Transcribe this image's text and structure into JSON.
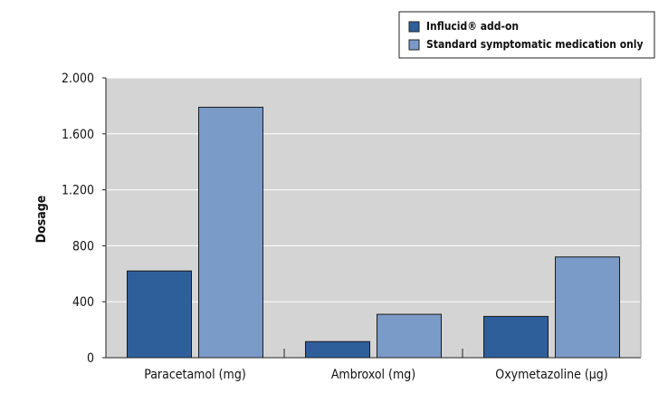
{
  "chart_data": {
    "type": "bar",
    "title": "",
    "xlabel": "",
    "ylabel": "Dosage",
    "ylim": [
      0,
      2000
    ],
    "yticks": [
      0,
      400,
      800,
      1200,
      1600,
      2000
    ],
    "ytick_labels": [
      "0",
      "400",
      "800",
      "1.200",
      "1.600",
      "2.000"
    ],
    "grid": true,
    "legend_position": "top-right",
    "categories": [
      "Paracetamol (mg)",
      "Ambroxol (mg)",
      "Oxymetazoline (µg)"
    ],
    "series": [
      {
        "name": "Influcid® add-on",
        "values": [
          620,
          115,
          295
        ],
        "color": "#2e5f9b"
      },
      {
        "name": "Standard symptomatic medication only",
        "values": [
          1790,
          310,
          720
        ],
        "color": "#7a9ac7"
      }
    ],
    "colors": {
      "plot_background": "#d4d4d4",
      "gridline": "#ffffff",
      "axis": "#222222"
    }
  }
}
